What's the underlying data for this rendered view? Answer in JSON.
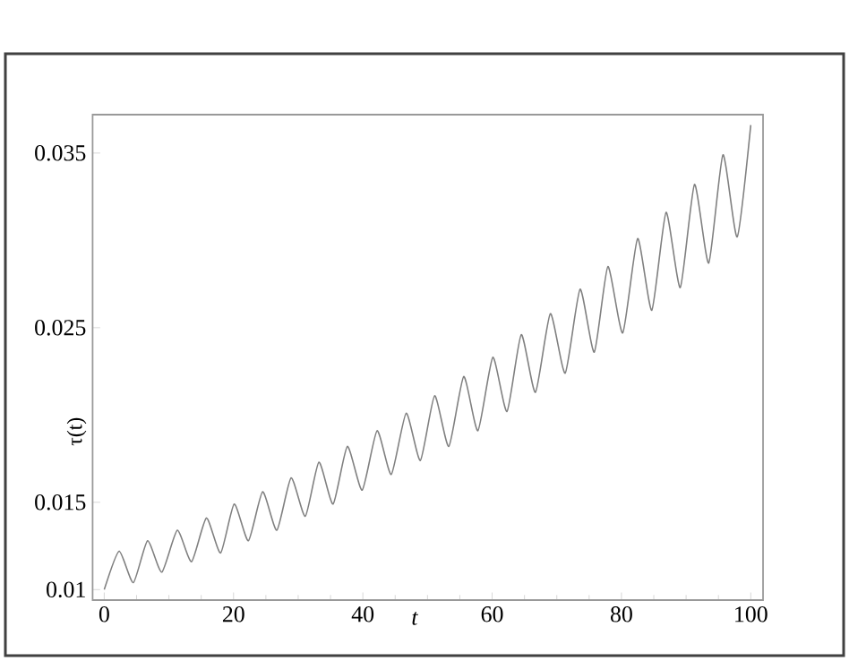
{
  "chart_data": {
    "type": "line",
    "xlabel": "t",
    "ylabel": "τ(t)",
    "x": [
      0,
      2.3,
      4.5,
      6.7,
      8.9,
      11.3,
      13.5,
      15.8,
      18.0,
      20.1,
      22.3,
      24.5,
      26.7,
      28.9,
      31.1,
      33.2,
      35.4,
      37.6,
      39.9,
      42.2,
      44.4,
      46.7,
      48.9,
      51.1,
      53.3,
      55.6,
      57.8,
      60.1,
      62.3,
      64.5,
      66.7,
      69.0,
      71.3,
      73.6,
      75.8,
      77.9,
      80.2,
      82.5,
      84.7,
      86.9,
      89.1,
      91.3,
      93.5,
      95.7,
      97.9,
      100
    ],
    "series": [
      {
        "color": "#808080",
        "values": [
          0.01,
          0.0122,
          0.0104,
          0.0128,
          0.011,
          0.0134,
          0.0116,
          0.0141,
          0.0121,
          0.0149,
          0.0128,
          0.0156,
          0.0134,
          0.0164,
          0.0142,
          0.0173,
          0.0149,
          0.0182,
          0.0157,
          0.0191,
          0.0166,
          0.0201,
          0.0174,
          0.0211,
          0.0182,
          0.0222,
          0.0191,
          0.0233,
          0.0202,
          0.0246,
          0.0213,
          0.0258,
          0.0224,
          0.0272,
          0.0236,
          0.0285,
          0.0247,
          0.0301,
          0.026,
          0.0316,
          0.0273,
          0.0332,
          0.0287,
          0.0349,
          0.0302,
          0.0366
        ]
      }
    ],
    "xlim": [
      -1.8,
      101.9
    ],
    "ylim": [
      0.0094,
      0.0372
    ],
    "xticks": [
      0,
      20,
      40,
      60,
      80,
      100
    ],
    "yticks": [
      0.01,
      0.015,
      0.025,
      0.035
    ],
    "marker": "none",
    "line_style": "solid"
  }
}
